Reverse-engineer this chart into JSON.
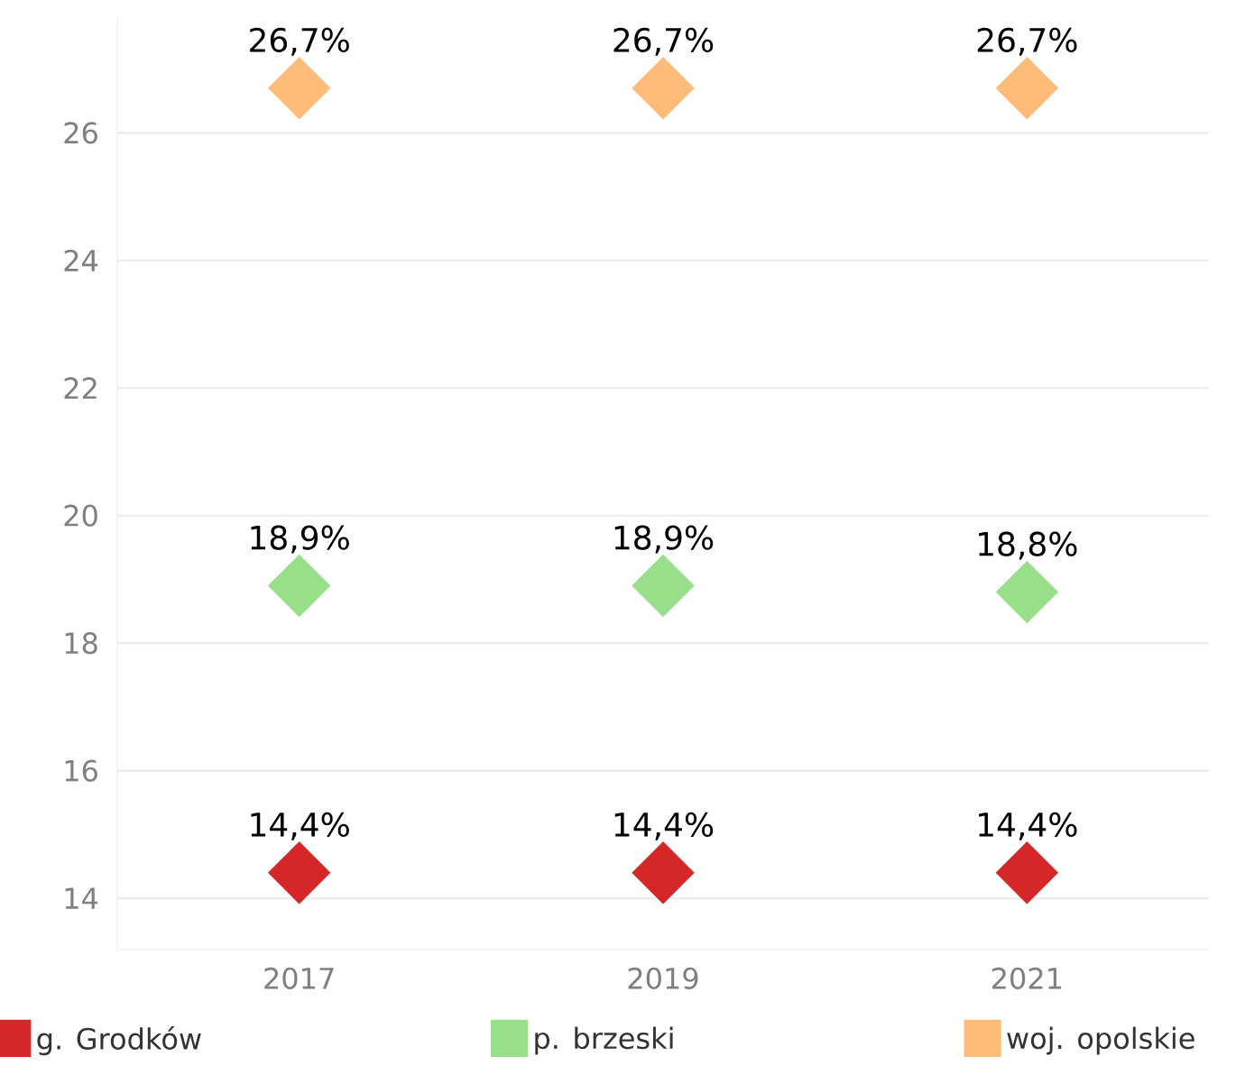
{
  "chart_data": {
    "type": "scatter",
    "categories": [
      "2017",
      "2019",
      "2021"
    ],
    "series": [
      {
        "name": "g. Grodków",
        "color": "#d62728",
        "values": [
          14.4,
          14.4,
          14.4
        ],
        "value_labels": [
          "14,4%",
          "14,4%",
          "14,4%"
        ]
      },
      {
        "name": "p. brzeski",
        "color": "#98df8a",
        "values": [
          18.9,
          18.9,
          18.8
        ],
        "value_labels": [
          "18,9%",
          "18,9%",
          "18,8%"
        ]
      },
      {
        "name": "woj. opolskie",
        "color": "#ffbb78",
        "values": [
          26.7,
          26.7,
          26.7
        ],
        "value_labels": [
          "26,7%",
          "26,7%",
          "26,7%"
        ]
      }
    ],
    "ylim": [
      13.2,
      27.8
    ],
    "yticks": [
      14,
      16,
      18,
      20,
      22,
      24,
      26
    ],
    "grid": "y",
    "legend": "bottom",
    "marker": "diamond"
  }
}
